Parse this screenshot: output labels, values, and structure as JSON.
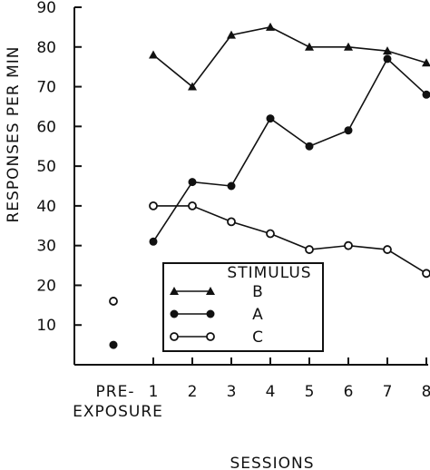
{
  "chart_data": {
    "type": "line",
    "xlabel": "SESSIONS",
    "ylabel": "RESPONSES PER MIN",
    "ylim": [
      0,
      90
    ],
    "yticks": [
      10,
      20,
      30,
      40,
      50,
      60,
      70,
      80,
      90
    ],
    "categories": [
      "1",
      "2",
      "3",
      "4",
      "5",
      "6",
      "7",
      "8"
    ],
    "pre_exposure_label": [
      "PRE-",
      "EXPOSURE"
    ],
    "series": [
      {
        "name": "B",
        "marker": "triangle",
        "values": [
          78,
          70,
          83,
          85,
          80,
          80,
          79,
          76
        ]
      },
      {
        "name": "A",
        "marker": "filled-circle",
        "pre_exposure": 5,
        "values": [
          31,
          46,
          45,
          62,
          55,
          59,
          77,
          68
        ]
      },
      {
        "name": "C",
        "marker": "open-circle",
        "pre_exposure": 16,
        "values": [
          40,
          40,
          36,
          33,
          29,
          30,
          29,
          23
        ]
      }
    ],
    "legend": {
      "title": "STIMULUS",
      "placement": "lower-middle"
    }
  }
}
